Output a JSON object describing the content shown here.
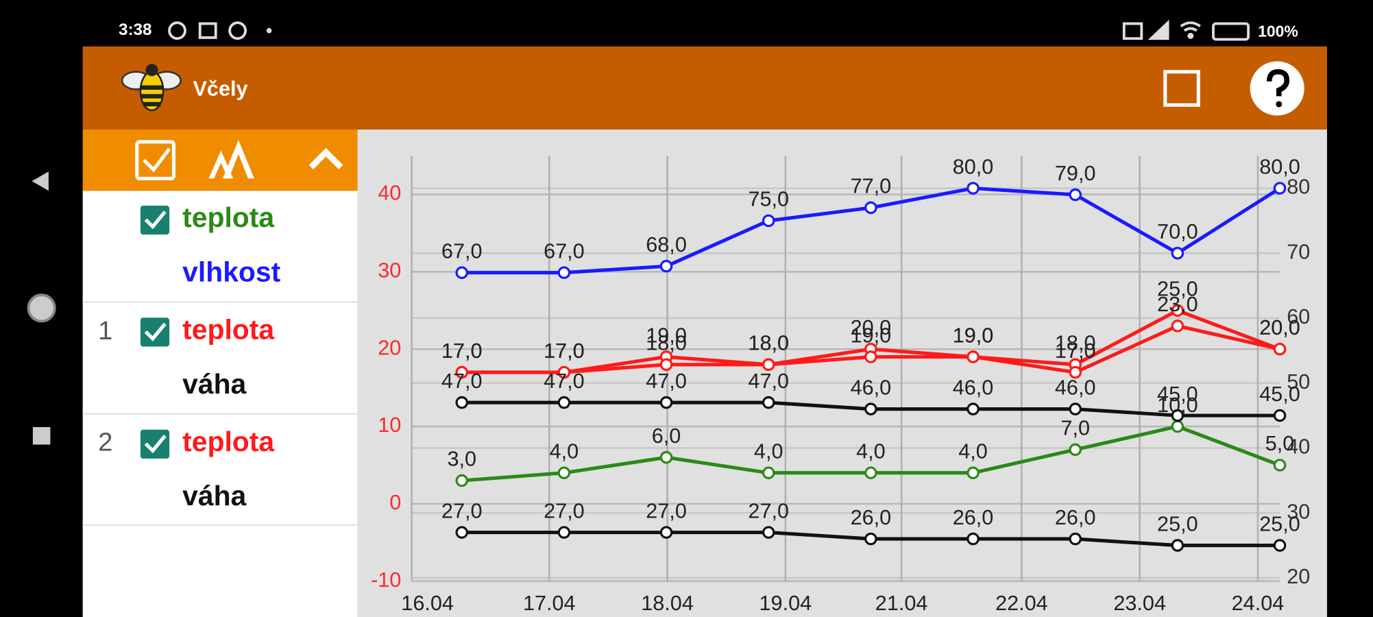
{
  "status_bar": {
    "time": "3:38",
    "battery": "100%"
  },
  "app_bar": {
    "title": "Včely"
  },
  "sidebar": {
    "groups": [
      "1",
      "2"
    ]
  },
  "chart_data": {
    "type": "line",
    "x": [
      0,
      1,
      2,
      3,
      4,
      5,
      6,
      7,
      8
    ],
    "xlim": [
      -0.49,
      8
    ],
    "xticks": [
      {
        "value": -0.49,
        "label": "16.04"
      },
      {
        "value": 0.855,
        "label": "17.04"
      },
      {
        "value": 2.01,
        "label": "18.04"
      },
      {
        "value": 3.165,
        "label": "19.04"
      },
      {
        "value": 4.3,
        "label": "21.04"
      },
      {
        "value": 5.475,
        "label": "22.04"
      },
      {
        "value": 6.63,
        "label": "23.04"
      },
      {
        "value": 7.785,
        "label": "24.04"
      }
    ],
    "ylim": [
      -10,
      45
    ],
    "yticks": [
      -10,
      0,
      10,
      20,
      30,
      40
    ],
    "ytick_color": "#ff2a2a",
    "y2lim": [
      19.5,
      85
    ],
    "y2ticks": [
      20,
      30,
      40,
      50,
      60,
      70,
      80
    ],
    "grid": true,
    "series": [
      {
        "name": "teplota",
        "color": "#2a8a16",
        "values": [
          3,
          4,
          6,
          4,
          4,
          4,
          7,
          10,
          5
        ],
        "value_labels": [
          "3,0",
          "4,0",
          "6,0",
          "4,0",
          "4,0",
          "4,0",
          "7,0",
          "10,0",
          "5,0"
        ]
      },
      {
        "name": "vlhkost",
        "color": "#1a1aff",
        "axis": "y2",
        "values": [
          67,
          67,
          68,
          75,
          77,
          80,
          79,
          70,
          80
        ],
        "value_labels": [
          "67,0",
          "67,0",
          "68,0",
          "75,0",
          "77,0",
          "80,0",
          "79,0",
          "70,0",
          "80,0"
        ]
      },
      {
        "name": "teplota",
        "color": "#ff1a1a",
        "values": [
          17,
          17,
          19,
          18,
          20,
          19,
          18,
          25,
          20
        ],
        "value_labels": [
          "17,0",
          "17,0",
          "19,0",
          "18,0",
          "20,0",
          "19,0",
          "18,0",
          "25,0",
          "20,0"
        ]
      },
      {
        "name": "váha",
        "color": "#111111",
        "axis": "y2",
        "values": [
          47,
          47,
          47,
          47,
          46,
          46,
          46,
          45,
          45
        ],
        "value_labels": [
          "47,0",
          "47,0",
          "47,0",
          "47,0",
          "46,0",
          "46,0",
          "46,0",
          "45,0",
          "45,0"
        ]
      },
      {
        "name": "teplota",
        "color": "#ff1a1a",
        "values": [
          17,
          17,
          18,
          18,
          19,
          19,
          17,
          23,
          20
        ],
        "value_labels": [
          "17,0",
          "17,0",
          "18,0",
          "18,0",
          "19,0",
          "19,0",
          "17,0",
          "23,0",
          "20,0"
        ]
      },
      {
        "name": "váha",
        "color": "#111111",
        "axis": "y2",
        "values": [
          27,
          27,
          27,
          27,
          26,
          26,
          26,
          25,
          25
        ],
        "value_labels": [
          "27,0",
          "27,0",
          "27,0",
          "27,0",
          "26,0",
          "26,0",
          "26,0",
          "25,0",
          "25,0"
        ]
      }
    ]
  }
}
